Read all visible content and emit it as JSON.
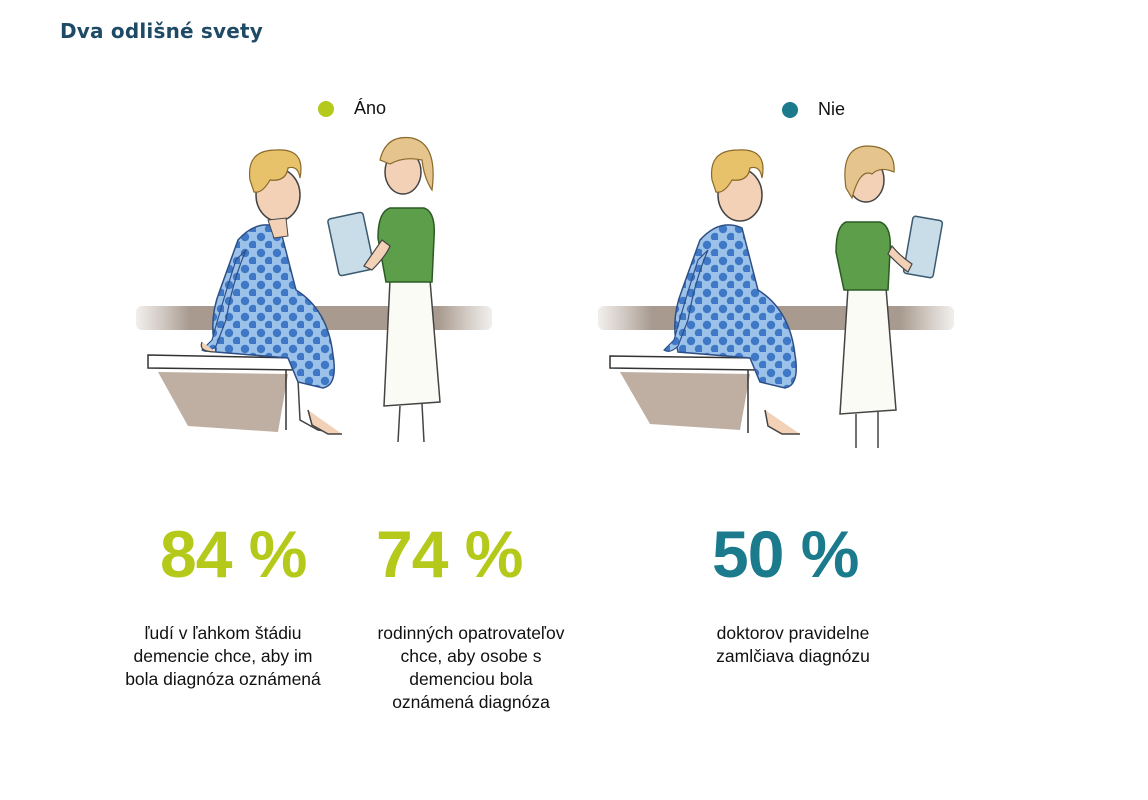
{
  "title": "Dva odlišné svety",
  "colors": {
    "yes": "#b4c91a",
    "no": "#1b7a8c",
    "title": "#1e4a66"
  },
  "legend": {
    "yes": {
      "label": "Áno",
      "color": "#b4c91a"
    },
    "no": {
      "label": "Nie",
      "color": "#1b7a8c"
    }
  },
  "stats": [
    {
      "value": "84 %",
      "color": "#b4c91a",
      "description": "ľudí v ľahkom štádiu\ndemencie chce, aby im\nbola diagnóza oznámená"
    },
    {
      "value": "74 %",
      "color": "#b4c91a",
      "description": "rodinných opatrovateľov\nchce, aby osobe s\ndemenciou bola\noznámená diagnóza"
    },
    {
      "value": "50 %",
      "color": "#1b7a8c",
      "description": "doktorov pravidelne\nzamlčiava diagnózu"
    }
  ],
  "illustrations": [
    {
      "icon": "patient-nurse-illustration-yes"
    },
    {
      "icon": "patient-nurse-illustration-no"
    }
  ]
}
